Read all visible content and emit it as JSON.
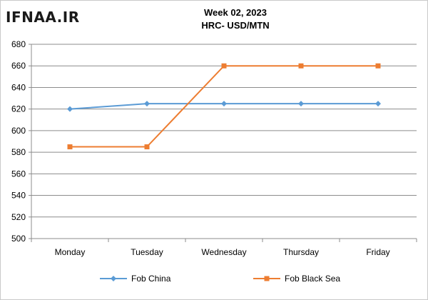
{
  "watermark": "IFNAA.IR",
  "chart_data": {
    "type": "line",
    "title": "Week 02, 2023",
    "subtitle": "HRC- USD/MTN",
    "categories": [
      "Monday",
      "Tuesday",
      "Wednesday",
      "Thursday",
      "Friday"
    ],
    "series": [
      {
        "name": "Fob China",
        "values": [
          620,
          625,
          625,
          625,
          625
        ],
        "color": "#5b9bd5",
        "marker": "diamond"
      },
      {
        "name": "Fob Black Sea",
        "values": [
          585,
          585,
          660,
          660,
          660
        ],
        "color": "#ed7d31",
        "marker": "square"
      }
    ],
    "ylim": [
      500,
      680
    ],
    "yticks": [
      500,
      520,
      540,
      560,
      580,
      600,
      620,
      640,
      660,
      680
    ],
    "grid": true,
    "legend_position": "bottom"
  }
}
